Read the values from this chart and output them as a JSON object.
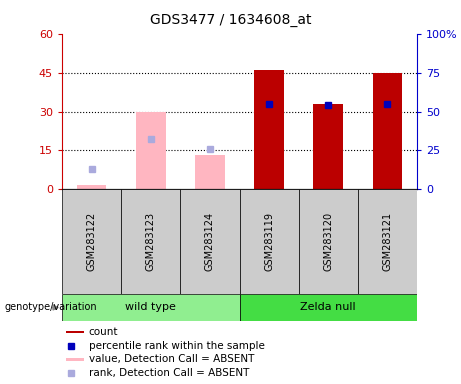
{
  "title": "GDS3477 / 1634608_at",
  "samples": [
    "GSM283122",
    "GSM283123",
    "GSM283124",
    "GSM283119",
    "GSM283120",
    "GSM283121"
  ],
  "count": [
    0,
    0,
    0,
    46,
    33,
    45
  ],
  "percentile_rank": [
    null,
    null,
    null,
    55,
    54,
    55
  ],
  "value_absent": [
    1.5,
    30,
    13,
    null,
    null,
    null
  ],
  "rank_absent": [
    13,
    32,
    26,
    null,
    null,
    null
  ],
  "ylim_left": [
    0,
    60
  ],
  "ylim_right": [
    0,
    100
  ],
  "yticks_left": [
    0,
    15,
    30,
    45,
    60
  ],
  "yticks_right": [
    0,
    25,
    50,
    75,
    100
  ],
  "left_color": "#cc0000",
  "right_color": "#0000cc",
  "bar_color_present": "#bb0000",
  "bar_color_absent": "#ffb6c1",
  "marker_color_present": "#0000bb",
  "marker_color_absent": "#aaaadd",
  "bg_color": "#cccccc",
  "wt_color": "#90ee90",
  "zn_color": "#44dd44",
  "plot_bg": "#ffffff",
  "bar_width": 0.5
}
